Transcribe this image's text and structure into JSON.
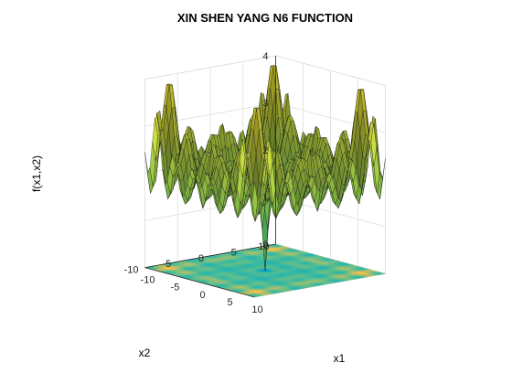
{
  "chart_data": {
    "type": "surface3d",
    "title": "XIN SHEN YANG N6 FUNCTION",
    "xlabel": "x1",
    "ylabel": "x2",
    "zlabel": "f(x1,x2)",
    "xlim": [
      -10,
      10
    ],
    "ylim": [
      -10,
      10
    ],
    "zlim": [
      0,
      4
    ],
    "x_ticks": [
      -10,
      -5,
      0,
      5,
      10
    ],
    "y_ticks": [
      -10,
      -5,
      0,
      5,
      10
    ],
    "z_ticks": [
      0,
      1,
      2,
      3,
      4
    ],
    "x_tick_labels": [
      "-10",
      "-5",
      "0",
      "5",
      "10"
    ],
    "y_tick_labels": [
      "-10",
      "-5",
      "0",
      "5",
      "10"
    ],
    "z_tick_labels": [
      "0",
      "1",
      "2",
      "3",
      "4"
    ],
    "surface_colormap": "summer",
    "contour_colormap": "parula",
    "contour_projection_at_z": 0,
    "grid": true,
    "global_minimum": {
      "x1": 0,
      "x2": 0,
      "z": 0
    },
    "max_value_approx": 3.9
  }
}
